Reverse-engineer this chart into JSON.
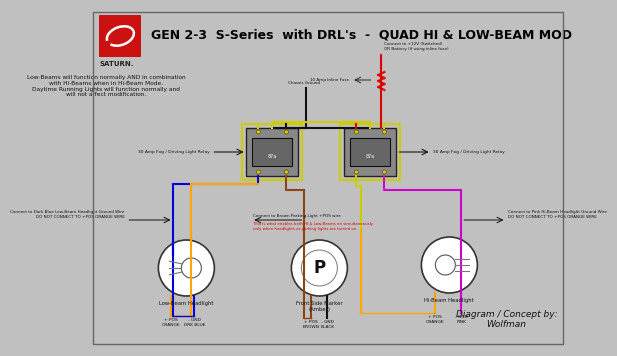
{
  "title": "GEN 2-3  S-Series  with DRL's  -  QUAD HI & LOW-BEAM MOD",
  "background_color": "#c0c0c0",
  "title_color": "#000000",
  "title_fontsize": 9.0,
  "saturn_text": "SATURN.",
  "body_text": "Low-Beams will function normally AND in combination\nwith Hi-Beams when in Hi-Beam Mode.\nDaytime Running Lights will function normally and\nwill not affect modification.",
  "relay1_label": "30 Amp Fog / Driving Light Relay",
  "relay2_label": "30 Amp Fog / Driving Light Relay",
  "top_connect_text": "Connect to +12V (Switched)\nOR Battery (if using inline fuse)",
  "chassis_ground_text": "Chassis Ground",
  "fuse_text": "10 Amp Inline Fuse",
  "left_connect_text": "Connect to Dark Blue Low-Beam Headlight Ground Wire\nDO NOT CONNECT TO +POS ORANGE WIRE",
  "center_connect_text": "Connect to Brown Parking Light +POS wire",
  "center_red_text": "This is what enables both HI & Low-Beams on simultaneously\nonly when headlights or parking lights are turned on.",
  "right_connect_text": "Connect to Pink Hi-Beam Headlight Ground Wire\nDO NOT CONNECT TO +POS ORANGE WIRE",
  "lamp1_label": "Low-Beam Headlight",
  "lamp2_label": "Front Side Marker\n(Amber)",
  "lamp3_label": "Hi-Beam Headlight",
  "lamp1_pos_label": "+ POS\nORANGE",
  "lamp1_gnd_label": "- GND\nDRK BLUE",
  "lamp2_pos_label": "+ POS\nBROWN",
  "lamp2_gnd_label": "- GND\nBLACK",
  "lamp3_pos_label": "+ POS\nORANGE",
  "lamp3_gnd_label": "- GND\nPINK",
  "diagram_credit": "Diagram / Concept by:\nWolfman",
  "wire_red": "#dd0000",
  "wire_black": "#111111",
  "wire_yellow": "#cccc00",
  "wire_blue": "#0000dd",
  "wire_darkblue": "#000077",
  "wire_brown": "#8B4513",
  "wire_orange": "#FFA500",
  "wire_pink": "#FF69B4",
  "wire_magenta": "#cc00cc",
  "relay_fill": "#999999",
  "relay_border": "#333333"
}
